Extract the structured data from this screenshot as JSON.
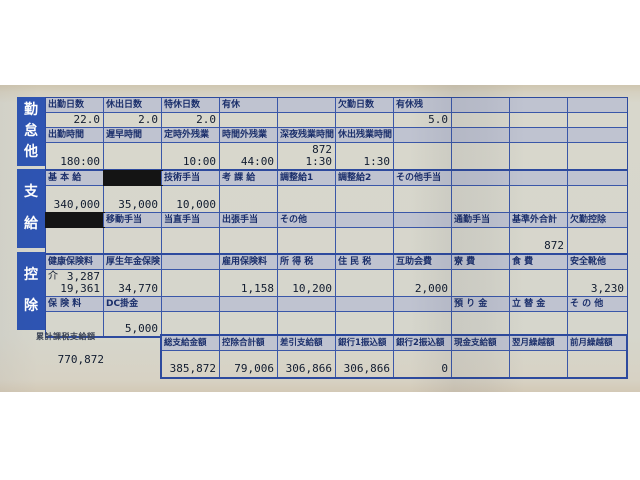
{
  "colors": {
    "table_line": "#3a57a8",
    "header_cell_bg": "#bfc3d0",
    "section_label_bg": "#2e54b2",
    "redaction_black": "#141414",
    "paper": "#d7d6cb",
    "header_text": "#1b2f6b"
  },
  "table": {
    "sections": [
      {
        "name": "attendance",
        "label": "勤怠他",
        "rows": [
          {
            "type": "header",
            "cells": [
              "出勤日数",
              "休出日数",
              "特休日数",
              "有休",
              "",
              "欠勤日数",
              "有休残",
              "",
              "",
              ""
            ]
          },
          {
            "type": "value",
            "cells": [
              "22.0",
              "2.0",
              "2.0",
              "",
              "",
              "",
              "5.0",
              "",
              "",
              ""
            ]
          },
          {
            "type": "header",
            "cells": [
              "出勤時間",
              "遅早時間",
              "定時外残業",
              "時間外残業",
              "深夜残業時間",
              "休出残業時間",
              "",
              "",
              "",
              ""
            ]
          },
          {
            "type": "value",
            "cells": [
              "180:00",
              "",
              "10:00",
              "44:00",
              "872\n1:30",
              "1:30",
              "",
              "",
              "",
              ""
            ]
          }
        ]
      },
      {
        "name": "payment",
        "label": "支給",
        "rows": [
          {
            "type": "header",
            "cells": [
              "基 本 給",
              "",
              "技術手当",
              "考 課 給",
              "調整給1",
              "調整給2",
              "その他手当",
              "",
              "",
              ""
            ],
            "redacted": [
              1
            ]
          },
          {
            "type": "value",
            "cells": [
              "340,000",
              "35,000",
              "10,000",
              "",
              "",
              "",
              "",
              "",
              "",
              ""
            ]
          },
          {
            "type": "header",
            "cells": [
              "",
              "移動手当",
              "当直手当",
              "出張手当",
              "その他",
              "",
              "",
              "通勤手当",
              "基準外合計",
              "欠勤控除"
            ],
            "redacted": [
              0
            ]
          },
          {
            "type": "value",
            "cells": [
              "",
              "",
              "",
              "",
              "",
              "",
              "",
              "",
              "872",
              ""
            ]
          }
        ]
      },
      {
        "name": "deduction",
        "label": "控除",
        "rows": [
          {
            "type": "header",
            "cells": [
              "健康保険料",
              "厚生年金保険",
              "",
              "雇用保険料",
              "所 得 税",
              "住 民 税",
              "互助会費",
              "寮 費",
              "食 費",
              "安全靴他"
            ]
          },
          {
            "type": "value",
            "cells": [
              {
                "lines": [
                  {
                    "left": "介",
                    "right": "3,287"
                  },
                  {
                    "right": "19,361"
                  }
                ]
              },
              "34,770",
              "",
              "1,158",
              "10,200",
              "",
              "2,000",
              "",
              "",
              "3,230"
            ]
          },
          {
            "type": "header",
            "cells": [
              "保 険 料",
              "DC掛金",
              "",
              "",
              "",
              "",
              "",
              "預 り 金",
              "立 替 金",
              "そ の 他"
            ]
          },
          {
            "type": "value",
            "cells": [
              "",
              "5,000",
              "",
              "",
              "",
              "",
              "",
              "",
              "",
              ""
            ]
          }
        ]
      }
    ]
  },
  "summary": {
    "cumulative_label": "累計課税支給額",
    "cumulative_value": "770,872",
    "columns": [
      {
        "label": "総支給金額",
        "value": "385,872"
      },
      {
        "label": "控除合計額",
        "value": "79,006"
      },
      {
        "label": "差引支給額",
        "value": "306,866"
      },
      {
        "label": "銀行1振込額",
        "value": "306,866"
      },
      {
        "label": "銀行2振込額",
        "value": "0"
      },
      {
        "label": "現金支給額",
        "value": ""
      },
      {
        "label": "翌月繰越額",
        "value": ""
      },
      {
        "label": "前月繰越額",
        "value": ""
      }
    ]
  }
}
